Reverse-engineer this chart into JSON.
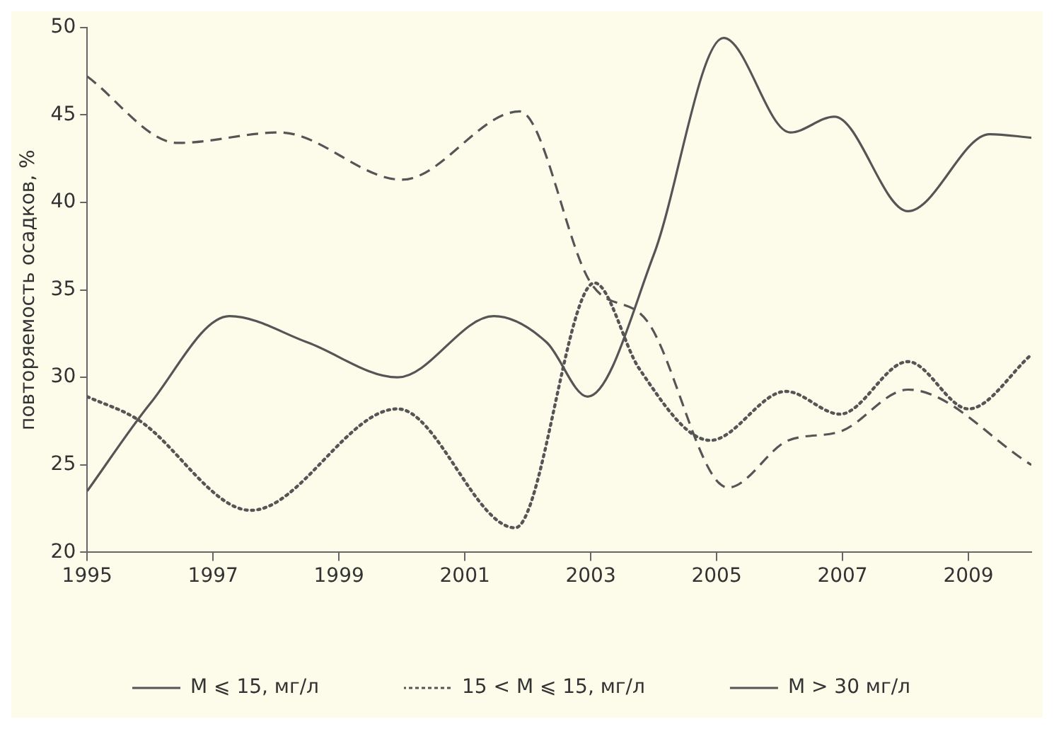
{
  "chart_data": {
    "type": "line",
    "ylabel": "повторяемость осадков, %",
    "xlim": [
      1995,
      2010
    ],
    "xticks": [
      1995,
      1997,
      1999,
      2001,
      2003,
      2005,
      2007,
      2009
    ],
    "ylim": [
      20,
      50
    ],
    "yticks": [
      20,
      25,
      30,
      35,
      40,
      45,
      50
    ],
    "grid": false,
    "legend": "bottom",
    "marker": "none",
    "series": [
      {
        "name": "M ⩽ 15, мг/л",
        "color": "#555555",
        "line_style": "solid",
        "x": [
          1995,
          1996,
          1997.26,
          1998.5,
          1999.93,
          2001.46,
          2002.3,
          2002.95,
          2004,
          2005.11,
          2006.17,
          2006.87,
          2008.04,
          2009.34,
          2010
        ],
        "values": [
          23.5,
          28.5,
          33.5,
          32,
          30,
          33.5,
          32,
          28.9,
          37,
          49.4,
          44,
          44.9,
          39.5,
          43.9,
          43.7
        ]
      },
      {
        "name": "15 < M ⩽ 15, мг/л",
        "color": "#555555",
        "line_style": "dotted",
        "x": [
          1995,
          1995.8,
          1997.6,
          1999.93,
          2001.8,
          2003.06,
          2003.77,
          2004.9,
          2006.1,
          2006.96,
          2008.04,
          2009,
          2010
        ],
        "values": [
          28.9,
          27.6,
          22.4,
          28.2,
          21.4,
          35.4,
          30.5,
          26.4,
          29.2,
          27.9,
          30.9,
          28.2,
          31.3
        ]
      },
      {
        "name": "M > 30 мг/л",
        "color": "#555555",
        "line_style": "dashed",
        "x": [
          1995,
          1996.44,
          1998.06,
          2000,
          2001.87,
          2003,
          2003.9,
          2005.18,
          2006.14,
          2006.96,
          2008.04,
          2010
        ],
        "values": [
          47.2,
          43.4,
          44,
          41.3,
          45.2,
          35.4,
          33.2,
          23.7,
          26.4,
          26.9,
          29.3,
          25
        ]
      }
    ]
  }
}
